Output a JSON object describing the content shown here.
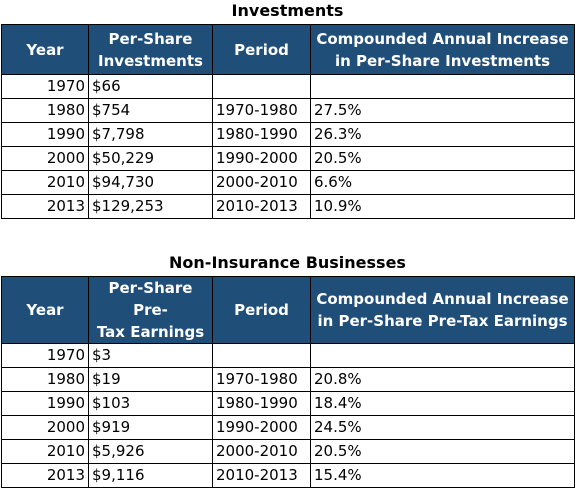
{
  "investments": {
    "title": "Investments",
    "headers": {
      "year": "Year",
      "value": [
        "Per-Share",
        "Investments"
      ],
      "period": "Period",
      "increase": [
        "Compounded Annual Increase",
        "in Per-Share Investments"
      ]
    },
    "rows": [
      {
        "year": "1970",
        "value": "$66",
        "period": "",
        "increase": ""
      },
      {
        "year": "1980",
        "value": "$754",
        "period": "1970-1980",
        "increase": "27.5%"
      },
      {
        "year": "1990",
        "value": "$7,798",
        "period": "1980-1990",
        "increase": "26.3%"
      },
      {
        "year": "2000",
        "value": "$50,229",
        "period": "1990-2000",
        "increase": "20.5%"
      },
      {
        "year": "2010",
        "value": "$94,730",
        "period": "2000-2010",
        "increase": "6.6%"
      },
      {
        "year": "2013",
        "value": "$129,253",
        "period": "2010-2013",
        "increase": "10.9%"
      }
    ]
  },
  "non_insurance": {
    "title": "Non-Insurance Businesses",
    "headers": {
      "year": "Year",
      "value": [
        "Per-Share Pre-",
        "Tax Earnings"
      ],
      "period": "Period",
      "increase": [
        "Compounded Annual Increase",
        "in Per-Share Pre-Tax Earnings"
      ]
    },
    "rows": [
      {
        "year": "1970",
        "value": "$3",
        "period": "",
        "increase": ""
      },
      {
        "year": "1980",
        "value": "$19",
        "period": "1970-1980",
        "increase": "20.8%"
      },
      {
        "year": "1990",
        "value": "$103",
        "period": "1980-1990",
        "increase": "18.4%"
      },
      {
        "year": "2000",
        "value": "$919",
        "period": "1990-2000",
        "increase": "24.5%"
      },
      {
        "year": "2010",
        "value": "$5,926",
        "period": "2000-2010",
        "increase": "20.5%"
      },
      {
        "year": "2013",
        "value": "$9,116",
        "period": "2010-2013",
        "increase": "15.4%"
      }
    ]
  },
  "colors": {
    "header_bg": "#1f4e79",
    "header_text": "#ffffff"
  }
}
